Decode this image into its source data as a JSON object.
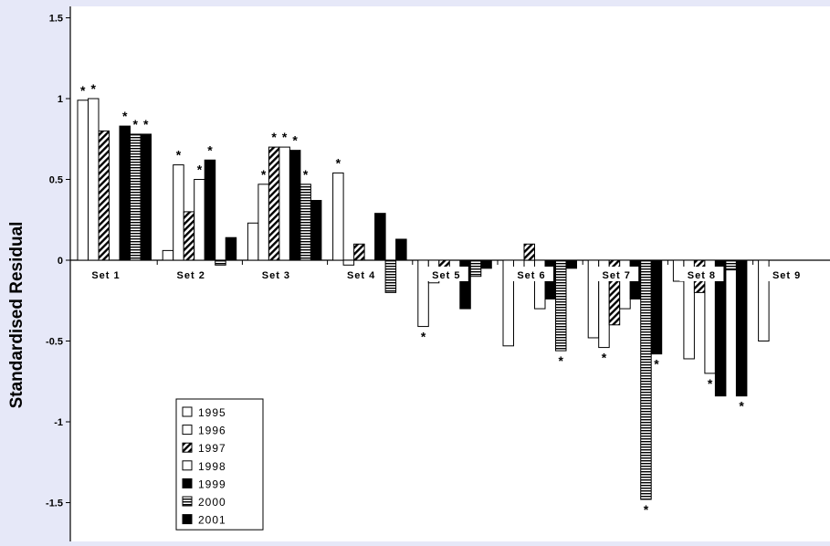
{
  "chart_data": {
    "type": "bar",
    "ylabel": "Standardised Residual",
    "ylim": [
      -1.75,
      1.5
    ],
    "yticks": [
      "1.5",
      "1",
      "0.5",
      "0",
      "-0.5",
      "-1",
      "-1.5"
    ],
    "grid": false,
    "legend_position": "bottom-left",
    "categories": [
      "Set 1",
      "Set 2",
      "Set 3",
      "Set 4",
      "Set 5",
      "Set 6",
      "Set 7",
      "Set 8",
      "Set 9"
    ],
    "series": [
      {
        "name": "1995",
        "pattern": "white",
        "values": [
          0.99,
          0.06,
          0.23,
          0.54,
          -0.41,
          -0.53,
          -0.48,
          -0.13,
          -0.5
        ]
      },
      {
        "name": "1996",
        "pattern": "white",
        "values": [
          1.0,
          0.59,
          0.47,
          -0.03,
          -0.14,
          -0.06,
          -0.54,
          -0.61,
          null
        ]
      },
      {
        "name": "1997",
        "pattern": "diagonal",
        "values": [
          0.8,
          0.3,
          0.7,
          0.1,
          -0.06,
          0.1,
          -0.4,
          -0.2,
          null
        ]
      },
      {
        "name": "1998",
        "pattern": "white",
        "values": [
          null,
          0.5,
          0.7,
          null,
          null,
          -0.3,
          -0.3,
          -0.7,
          null
        ]
      },
      {
        "name": "1999",
        "pattern": "black",
        "values": [
          0.83,
          0.62,
          0.68,
          0.29,
          -0.3,
          -0.24,
          -0.24,
          -0.84,
          null
        ]
      },
      {
        "name": "2000",
        "pattern": "horizontal",
        "values": [
          0.78,
          -0.03,
          0.47,
          -0.2,
          -0.1,
          -0.56,
          -1.48,
          -0.06,
          null
        ]
      },
      {
        "name": "2001",
        "pattern": "black",
        "values": [
          0.78,
          0.14,
          0.37,
          0.13,
          -0.05,
          -0.05,
          -0.58,
          -0.84,
          null
        ]
      }
    ],
    "significance_markers": [
      {
        "category": "Set 1",
        "series": [
          "1995",
          "1996",
          "1999",
          "2000",
          "2001"
        ]
      },
      {
        "category": "Set 2",
        "series": [
          "1996",
          "1998",
          "1999"
        ]
      },
      {
        "category": "Set 3",
        "series": [
          "1996",
          "1997",
          "1998",
          "1999",
          "2000"
        ]
      },
      {
        "category": "Set 4",
        "series": [
          "1995"
        ]
      },
      {
        "category": "Set 5",
        "series": [
          "1995"
        ]
      },
      {
        "category": "Set 6",
        "series": [
          "2000"
        ]
      },
      {
        "category": "Set 7",
        "series": [
          "1996",
          "2000",
          "2001"
        ]
      },
      {
        "category": "Set 8",
        "series": [
          "1998",
          "2001"
        ]
      }
    ],
    "marker_symbol": "*"
  }
}
